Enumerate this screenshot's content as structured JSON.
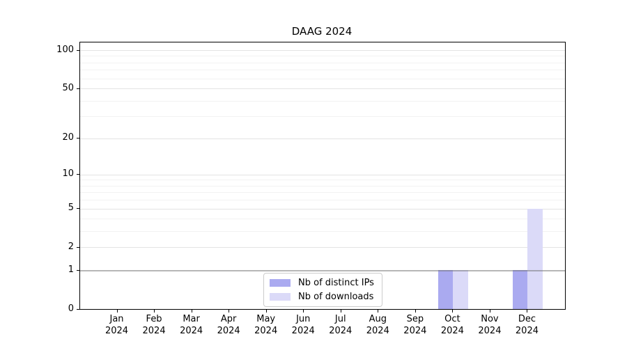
{
  "chart_data": {
    "type": "bar",
    "title": "DAAG 2024",
    "x": [
      "Jan 2024",
      "Feb 2024",
      "Mar 2024",
      "Apr 2024",
      "May 2024",
      "Jun 2024",
      "Jul 2024",
      "Aug 2024",
      "Sep 2024",
      "Oct 2024",
      "Nov 2024",
      "Dec 2024"
    ],
    "series": [
      {
        "name": "Nb of distinct IPs",
        "color": "#aaaaf0",
        "values": [
          0,
          0,
          0,
          0,
          0,
          0,
          0,
          0,
          0,
          1,
          0,
          1
        ]
      },
      {
        "name": "Nb of downloads",
        "color": "#dbdaf8",
        "values": [
          0,
          0,
          0,
          0,
          0,
          0,
          0,
          0,
          0,
          1,
          0,
          5
        ]
      }
    ],
    "y_axis": {
      "scale": "log1p",
      "ticks": [
        0,
        1,
        2,
        5,
        10,
        20,
        50,
        100
      ],
      "minor_ticks": [
        3,
        4,
        6,
        7,
        8,
        9,
        30,
        40,
        60,
        70,
        80,
        90
      ],
      "range": [
        0,
        115
      ],
      "emphasized_gridline_value": 1
    },
    "grid": true,
    "legend_position": "lower center"
  }
}
